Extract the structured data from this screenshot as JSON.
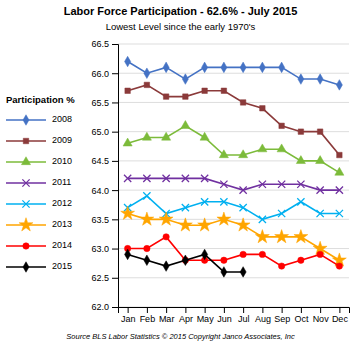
{
  "chart_data": {
    "type": "line",
    "title": "Labor Force Participation - 62.6% - July 2015",
    "subtitle": "Lowest Level since the early 1970's",
    "footer": "Source BLS Labor Statistics © 2015 Copyright Janco Associates, Inc",
    "ylabel": "Participation %",
    "categories": [
      "Jan",
      "Feb",
      "Mar",
      "Apr",
      "May",
      "Jun",
      "Jul",
      "Aug",
      "Sep",
      "Oct",
      "Nov",
      "Dec"
    ],
    "series": [
      {
        "name": "2008",
        "color": "#4472C4",
        "marker": "diamond",
        "values": [
          66.2,
          66.0,
          66.1,
          65.9,
          66.1,
          66.1,
          66.1,
          66.1,
          66.1,
          65.9,
          65.9,
          65.8
        ]
      },
      {
        "name": "2009",
        "color": "#8B3A3A",
        "marker": "square",
        "values": [
          65.7,
          65.8,
          65.6,
          65.6,
          65.7,
          65.7,
          65.5,
          65.4,
          65.1,
          65.0,
          65.0,
          64.6
        ]
      },
      {
        "name": "2010",
        "color": "#7CBB3A",
        "marker": "triangle",
        "values": [
          64.8,
          64.9,
          64.9,
          65.1,
          64.9,
          64.6,
          64.6,
          64.7,
          64.7,
          64.5,
          64.5,
          64.3
        ]
      },
      {
        "name": "2011",
        "color": "#7030A0",
        "marker": "x",
        "values": [
          64.2,
          64.2,
          64.2,
          64.2,
          64.2,
          64.1,
          64.0,
          64.1,
          64.1,
          64.1,
          64.0,
          64.0
        ]
      },
      {
        "name": "2012",
        "color": "#00B0F0",
        "marker": "x",
        "values": [
          63.7,
          63.9,
          63.6,
          63.7,
          63.8,
          63.8,
          63.7,
          63.5,
          63.6,
          63.8,
          63.6,
          63.6
        ]
      },
      {
        "name": "2013",
        "color": "#FFA500",
        "marker": "star",
        "values": [
          63.6,
          63.5,
          63.5,
          63.4,
          63.4,
          63.5,
          63.4,
          63.2,
          63.2,
          63.2,
          63.0,
          62.8
        ]
      },
      {
        "name": "2014",
        "color": "#FF0000",
        "marker": "circle",
        "values": [
          63.0,
          63.0,
          63.2,
          62.8,
          62.8,
          62.8,
          62.9,
          62.9,
          62.7,
          62.8,
          62.9,
          62.7
        ]
      },
      {
        "name": "2015",
        "color": "#000000",
        "marker": "diamond",
        "values": [
          62.9,
          62.8,
          62.7,
          62.8,
          62.9,
          62.6,
          62.6,
          null,
          null,
          null,
          null,
          null
        ]
      }
    ],
    "ylim": [
      62.0,
      66.5
    ],
    "yticks": [
      {
        "value": 62.0,
        "label": "62.0"
      },
      62.5,
      {
        "value": 63.0,
        "label": "63.0"
      },
      63.5,
      {
        "value": 64.0,
        "label": "64.0"
      },
      64.5,
      {
        "value": 65.0,
        "label": "65.0"
      },
      65.5,
      {
        "value": 66.0,
        "label": "66.0"
      },
      66.5
    ],
    "grid": true,
    "legend": "left"
  }
}
